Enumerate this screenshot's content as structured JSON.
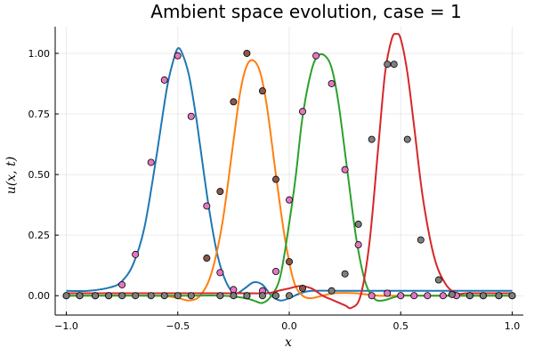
{
  "chart_data": {
    "type": "line",
    "title": "Ambient space evolution, case = 1",
    "xlabel": "x",
    "ylabel": "u(x, t)",
    "xlim": [
      -1.05,
      1.05
    ],
    "ylim": [
      -0.08,
      1.11
    ],
    "xticks": [
      -1.0,
      -0.5,
      0.0,
      0.5,
      1.0
    ],
    "xtick_labels": [
      "−1.0",
      "−0.5",
      "0.0",
      "0.5",
      "1.0"
    ],
    "yticks": [
      0.0,
      0.25,
      0.5,
      0.75,
      1.0
    ],
    "ytick_labels": [
      "0.00",
      "0.25",
      "0.50",
      "0.75",
      "1.00"
    ],
    "grid": true,
    "legend": "none",
    "series": [
      {
        "color": "#1f77b4",
        "x": [
          -1.0,
          -0.9,
          -0.8,
          -0.75,
          -0.7,
          -0.65,
          -0.6,
          -0.55,
          -0.52,
          -0.5,
          -0.48,
          -0.45,
          -0.42,
          -0.4,
          -0.36,
          -0.32,
          -0.28,
          -0.24,
          -0.2,
          -0.16,
          -0.12,
          -0.08,
          -0.04,
          0.0,
          0.05,
          0.1,
          0.2,
          0.3,
          0.4,
          0.5,
          0.6,
          0.7,
          0.8,
          0.9,
          1.0
        ],
        "y": [
          0.02,
          0.02,
          0.035,
          0.06,
          0.13,
          0.28,
          0.55,
          0.85,
          0.97,
          1.02,
          1.0,
          0.91,
          0.75,
          0.62,
          0.36,
          0.16,
          0.05,
          0.01,
          0.03,
          0.055,
          0.045,
          0.0,
          -0.02,
          -0.01,
          0.01,
          0.02,
          0.02,
          0.02,
          0.02,
          0.02,
          0.02,
          0.02,
          0.02,
          0.02,
          0.02
        ]
      },
      {
        "color": "#ff7f0e",
        "x": [
          -1.0,
          -0.6,
          -0.5,
          -0.45,
          -0.4,
          -0.35,
          -0.3,
          -0.25,
          -0.22,
          -0.19,
          -0.16,
          -0.13,
          -0.1,
          -0.06,
          -0.02,
          0.02,
          0.06,
          0.1,
          0.15,
          0.2,
          0.3,
          0.4,
          0.5,
          0.6,
          0.8,
          1.0
        ],
        "y": [
          0.0,
          0.0,
          -0.01,
          -0.02,
          0.0,
          0.09,
          0.3,
          0.64,
          0.84,
          0.95,
          0.97,
          0.92,
          0.78,
          0.5,
          0.24,
          0.06,
          0.0,
          -0.01,
          0.0,
          0.01,
          0.01,
          0.0,
          0.0,
          0.0,
          0.0,
          0.0
        ]
      },
      {
        "color": "#2ca02c",
        "x": [
          -1.0,
          -0.5,
          -0.3,
          -0.2,
          -0.16,
          -0.12,
          -0.08,
          -0.04,
          0.0,
          0.03,
          0.06,
          0.1,
          0.13,
          0.16,
          0.19,
          0.22,
          0.26,
          0.3,
          0.34,
          0.38,
          0.42,
          0.5,
          0.6,
          0.8,
          1.0
        ],
        "y": [
          0.0,
          0.0,
          0.0,
          -0.01,
          -0.02,
          -0.03,
          0.0,
          0.08,
          0.3,
          0.5,
          0.74,
          0.93,
          0.99,
          0.99,
          0.94,
          0.8,
          0.52,
          0.24,
          0.06,
          -0.01,
          -0.02,
          0.0,
          0.0,
          0.0,
          0.0
        ]
      },
      {
        "color": "#d62728",
        "x": [
          -1.0,
          -0.5,
          -0.2,
          -0.1,
          -0.05,
          0.0,
          0.05,
          0.1,
          0.15,
          0.2,
          0.25,
          0.28,
          0.32,
          0.36,
          0.4,
          0.43,
          0.46,
          0.48,
          0.5,
          0.53,
          0.56,
          0.6,
          0.65,
          0.7,
          0.75,
          0.8,
          0.9,
          1.0
        ],
        "y": [
          0.01,
          0.01,
          0.01,
          0.01,
          0.02,
          0.03,
          0.04,
          0.03,
          0.0,
          -0.02,
          -0.04,
          -0.05,
          0.0,
          0.22,
          0.62,
          0.92,
          1.06,
          1.08,
          1.06,
          0.92,
          0.7,
          0.4,
          0.16,
          0.05,
          0.01,
          0.01,
          0.01,
          0.01
        ]
      }
    ],
    "scatter": [
      {
        "color": "#e377c2",
        "x": [
          -1.0,
          -0.94,
          -0.87,
          -0.81,
          -0.75,
          -0.69,
          -0.62,
          -0.56,
          -0.5,
          -0.44,
          -0.37,
          -0.31,
          -0.25,
          -0.19,
          -0.12,
          -0.06,
          0.0,
          0.06,
          0.12,
          0.19,
          0.25,
          0.31,
          0.37,
          0.44,
          0.5,
          0.56,
          0.62,
          0.69,
          0.75,
          0.81,
          0.87,
          0.94,
          1.0
        ],
        "y": [
          0.0,
          0.0,
          0.0,
          0.0,
          0.045,
          0.17,
          0.55,
          0.89,
          0.99,
          0.74,
          0.37,
          0.095,
          0.025,
          0.0,
          0.02,
          0.1,
          0.395,
          0.76,
          0.99,
          0.875,
          0.52,
          0.21,
          0.0,
          0.01,
          0.0,
          0.0,
          0.0,
          0.0,
          0.0,
          0.0,
          0.0,
          0.0,
          0.0
        ]
      },
      {
        "color": "#8c564b",
        "x": [
          -0.37,
          -0.31,
          -0.25,
          -0.19,
          -0.12,
          -0.06,
          0.0,
          0.06
        ],
        "y": [
          0.155,
          0.43,
          0.8,
          1.0,
          0.845,
          0.48,
          0.14,
          0.03
        ]
      },
      {
        "color": "#7f7f7f",
        "x": [
          -1.0,
          -0.94,
          -0.87,
          -0.81,
          -0.75,
          -0.69,
          -0.62,
          -0.56,
          -0.5,
          -0.44,
          -0.31,
          -0.25,
          -0.19,
          -0.12,
          -0.06,
          0.0,
          0.19,
          0.25,
          0.31,
          0.37,
          0.44,
          0.47,
          0.53,
          0.59,
          0.67,
          0.73,
          0.81,
          0.87,
          0.94,
          1.0
        ],
        "y": [
          0.0,
          0.0,
          0.0,
          0.0,
          0.0,
          0.0,
          0.0,
          0.0,
          0.0,
          0.0,
          0.0,
          0.0,
          0.0,
          0.0,
          0.0,
          0.0,
          0.02,
          0.09,
          0.295,
          0.645,
          0.955,
          0.955,
          0.645,
          0.23,
          0.065,
          0.005,
          0.0,
          0.0,
          0.0,
          0.0
        ]
      }
    ]
  }
}
